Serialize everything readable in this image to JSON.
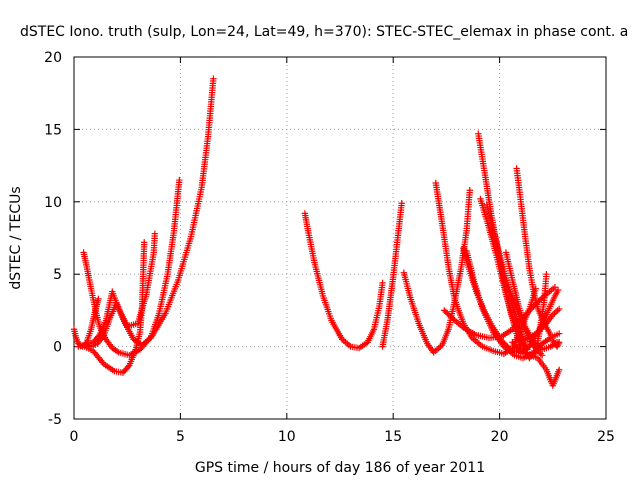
{
  "chart_data": {
    "type": "scatter",
    "title": "dSTEC Iono. truth (sulp, Lon=24, Lat=49, h=370): STEC-STEC_elemax in phase cont. a",
    "xlabel": "GPS time / hours of day 186 of year 2011",
    "ylabel": "dSTEC  / TECUs",
    "xlim": [
      0,
      25
    ],
    "ylim": [
      -5,
      20
    ],
    "xticks": [
      0,
      5,
      10,
      15,
      20,
      25
    ],
    "yticks": [
      -5,
      0,
      5,
      10,
      15,
      20
    ],
    "grid": true,
    "marker": "+",
    "color": "#ff0000",
    "series": [
      {
        "points": [
          [
            0.0,
            1.2
          ],
          [
            0.1,
            0.6
          ],
          [
            0.2,
            0.2
          ],
          [
            0.4,
            0.0
          ],
          [
            0.6,
            0.3
          ],
          [
            0.8,
            1.2
          ],
          [
            1.0,
            2.5
          ],
          [
            1.15,
            3.3
          ]
        ]
      },
      {
        "points": [
          [
            0.45,
            6.5
          ],
          [
            0.6,
            5.5
          ],
          [
            0.8,
            4.0
          ],
          [
            1.0,
            2.6
          ],
          [
            1.2,
            1.4
          ],
          [
            1.5,
            0.5
          ],
          [
            1.8,
            -0.1
          ],
          [
            2.1,
            -0.4
          ],
          [
            2.6,
            -0.6
          ],
          [
            3.1,
            -0.2
          ],
          [
            3.7,
            0.8
          ],
          [
            4.3,
            2.3
          ],
          [
            4.9,
            4.6
          ],
          [
            5.5,
            7.6
          ],
          [
            6.0,
            11.0
          ],
          [
            6.3,
            14.5
          ],
          [
            6.55,
            18.5
          ]
        ]
      },
      {
        "points": [
          [
            0.5,
            0.1
          ],
          [
            0.8,
            0.0
          ],
          [
            1.1,
            0.2
          ],
          [
            1.4,
            0.8
          ],
          [
            1.7,
            2.0
          ],
          [
            2.0,
            3.0
          ],
          [
            2.4,
            1.6
          ],
          [
            2.8,
            0.5
          ],
          [
            3.2,
            0.1
          ],
          [
            3.6,
            0.6
          ],
          [
            4.0,
            2.3
          ],
          [
            4.4,
            5.0
          ],
          [
            4.7,
            8.0
          ],
          [
            4.95,
            11.5
          ]
        ]
      },
      {
        "points": [
          [
            0.2,
            0.0
          ],
          [
            0.5,
            0.1
          ],
          [
            0.9,
            0.3
          ],
          [
            1.2,
            0.8
          ],
          [
            1.5,
            1.8
          ],
          [
            1.8,
            3.8
          ],
          [
            2.1,
            2.6
          ],
          [
            2.5,
            1.4
          ],
          [
            3.0,
            1.6
          ],
          [
            3.4,
            3.6
          ],
          [
            3.75,
            6.5
          ],
          [
            3.8,
            7.8
          ]
        ]
      },
      {
        "points": [
          [
            0.5,
            0.0
          ],
          [
            0.9,
            -0.3
          ],
          [
            1.4,
            -1.2
          ],
          [
            1.9,
            -1.7
          ],
          [
            2.3,
            -1.8
          ],
          [
            2.6,
            -1.3
          ],
          [
            2.9,
            -0.2
          ],
          [
            3.1,
            1.0
          ],
          [
            3.2,
            2.8
          ],
          [
            3.25,
            5.0
          ],
          [
            3.3,
            7.2
          ]
        ]
      },
      {
        "points": [
          [
            10.85,
            9.2
          ],
          [
            11.0,
            8.0
          ],
          [
            11.3,
            5.8
          ],
          [
            11.7,
            3.5
          ],
          [
            12.1,
            1.8
          ],
          [
            12.6,
            0.5
          ],
          [
            13.0,
            0.0
          ],
          [
            13.4,
            -0.1
          ],
          [
            13.8,
            0.3
          ],
          [
            14.1,
            1.2
          ],
          [
            14.35,
            2.8
          ],
          [
            14.5,
            4.4
          ]
        ]
      },
      {
        "points": [
          [
            14.5,
            0.0
          ],
          [
            14.75,
            2.0
          ],
          [
            15.0,
            4.8
          ],
          [
            15.25,
            8.0
          ],
          [
            15.4,
            9.9
          ]
        ]
      },
      {
        "points": [
          [
            15.5,
            5.1
          ],
          [
            15.8,
            3.4
          ],
          [
            16.2,
            1.6
          ],
          [
            16.6,
            0.2
          ],
          [
            16.9,
            -0.4
          ],
          [
            17.3,
            0.1
          ],
          [
            17.6,
            1.2
          ],
          [
            17.9,
            3.2
          ],
          [
            18.2,
            5.5
          ],
          [
            18.45,
            8.0
          ],
          [
            18.6,
            10.8
          ]
        ]
      },
      {
        "points": [
          [
            17.0,
            11.3
          ],
          [
            17.3,
            8.5
          ],
          [
            17.6,
            5.5
          ],
          [
            17.9,
            3.2
          ],
          [
            18.3,
            1.6
          ],
          [
            18.7,
            0.6
          ],
          [
            19.2,
            0.0
          ],
          [
            19.7,
            -0.3
          ],
          [
            20.2,
            -0.5
          ],
          [
            20.6,
            -0.1
          ],
          [
            21.0,
            1.2
          ],
          [
            21.4,
            2.6
          ],
          [
            21.7,
            4.0
          ]
        ]
      },
      {
        "points": [
          [
            17.4,
            2.5
          ],
          [
            17.9,
            1.8
          ],
          [
            18.4,
            1.2
          ],
          [
            18.9,
            0.8
          ],
          [
            19.5,
            0.6
          ],
          [
            20.1,
            0.7
          ],
          [
            20.6,
            1.2
          ],
          [
            21.1,
            2.0
          ],
          [
            21.6,
            2.8
          ],
          [
            22.1,
            3.5
          ],
          [
            22.6,
            4.1
          ]
        ]
      },
      {
        "points": [
          [
            18.3,
            6.8
          ],
          [
            18.6,
            5.2
          ],
          [
            18.9,
            3.8
          ],
          [
            19.3,
            2.4
          ],
          [
            19.7,
            1.3
          ],
          [
            20.1,
            0.4
          ],
          [
            20.5,
            -0.2
          ],
          [
            20.9,
            -0.4
          ],
          [
            21.3,
            -0.5
          ],
          [
            21.8,
            -0.8
          ],
          [
            22.2,
            -1.6
          ],
          [
            22.5,
            -2.7
          ],
          [
            22.8,
            -1.6
          ]
        ]
      },
      {
        "points": [
          [
            18.45,
            6.6
          ],
          [
            18.8,
            4.5
          ],
          [
            19.2,
            2.6
          ],
          [
            19.7,
            1.0
          ],
          [
            20.2,
            0.0
          ],
          [
            20.7,
            -0.6
          ],
          [
            21.1,
            -0.8
          ],
          [
            21.6,
            -0.4
          ],
          [
            22.0,
            0.2
          ],
          [
            22.4,
            0.6
          ],
          [
            22.8,
            0.9
          ]
        ]
      },
      {
        "points": [
          [
            19.0,
            14.7
          ],
          [
            19.3,
            12.0
          ],
          [
            19.6,
            9.2
          ],
          [
            19.9,
            6.8
          ],
          [
            20.2,
            4.5
          ],
          [
            20.5,
            2.5
          ],
          [
            20.8,
            0.9
          ],
          [
            21.0,
            0.0
          ]
        ]
      },
      {
        "points": [
          [
            19.1,
            10.2
          ],
          [
            19.5,
            8.2
          ],
          [
            19.9,
            6.0
          ],
          [
            20.3,
            3.6
          ],
          [
            20.7,
            1.5
          ],
          [
            21.0,
            -0.3
          ]
        ]
      },
      {
        "points": [
          [
            19.4,
            9.8
          ],
          [
            19.8,
            7.5
          ],
          [
            20.2,
            5.2
          ],
          [
            20.6,
            3.0
          ],
          [
            21.0,
            1.0
          ],
          [
            21.3,
            -0.2
          ]
        ]
      },
      {
        "points": [
          [
            19.6,
            8.0
          ],
          [
            20.0,
            6.0
          ],
          [
            20.5,
            3.8
          ],
          [
            21.0,
            1.8
          ],
          [
            21.5,
            0.2
          ],
          [
            22.0,
            -0.6
          ]
        ]
      },
      {
        "points": [
          [
            20.8,
            12.3
          ],
          [
            21.0,
            10.0
          ],
          [
            21.2,
            7.6
          ],
          [
            21.4,
            5.4
          ],
          [
            21.6,
            3.8
          ],
          [
            21.8,
            2.6
          ],
          [
            22.1,
            1.6
          ],
          [
            22.4,
            0.8
          ]
        ]
      },
      {
        "points": [
          [
            20.3,
            6.5
          ],
          [
            20.6,
            4.6
          ],
          [
            20.9,
            2.8
          ],
          [
            21.2,
            1.4
          ],
          [
            21.6,
            0.3
          ],
          [
            22.0,
            -0.2
          ],
          [
            22.4,
            0.0
          ],
          [
            22.7,
            0.3
          ]
        ]
      },
      {
        "points": [
          [
            20.5,
            3.5
          ],
          [
            20.8,
            1.6
          ],
          [
            21.1,
            0.0
          ],
          [
            21.4,
            -0.8
          ],
          [
            21.7,
            -0.4
          ],
          [
            21.9,
            1.2
          ],
          [
            22.1,
            3.2
          ],
          [
            22.2,
            5.0
          ]
        ]
      },
      {
        "points": [
          [
            20.6,
            0.3
          ],
          [
            21.0,
            -0.4
          ],
          [
            21.4,
            0.0
          ],
          [
            21.8,
            1.0
          ],
          [
            22.2,
            2.2
          ],
          [
            22.6,
            3.5
          ],
          [
            22.75,
            3.9
          ]
        ]
      },
      {
        "points": [
          [
            21.0,
            0.4
          ],
          [
            21.4,
            0.6
          ],
          [
            21.8,
            1.0
          ],
          [
            22.2,
            1.6
          ],
          [
            22.5,
            2.2
          ],
          [
            22.8,
            2.6
          ]
        ]
      },
      {
        "points": [
          [
            22.5,
            0.4
          ],
          [
            22.6,
            0.2
          ],
          [
            22.7,
            0.0
          ],
          [
            22.8,
            0.3
          ]
        ]
      }
    ]
  }
}
